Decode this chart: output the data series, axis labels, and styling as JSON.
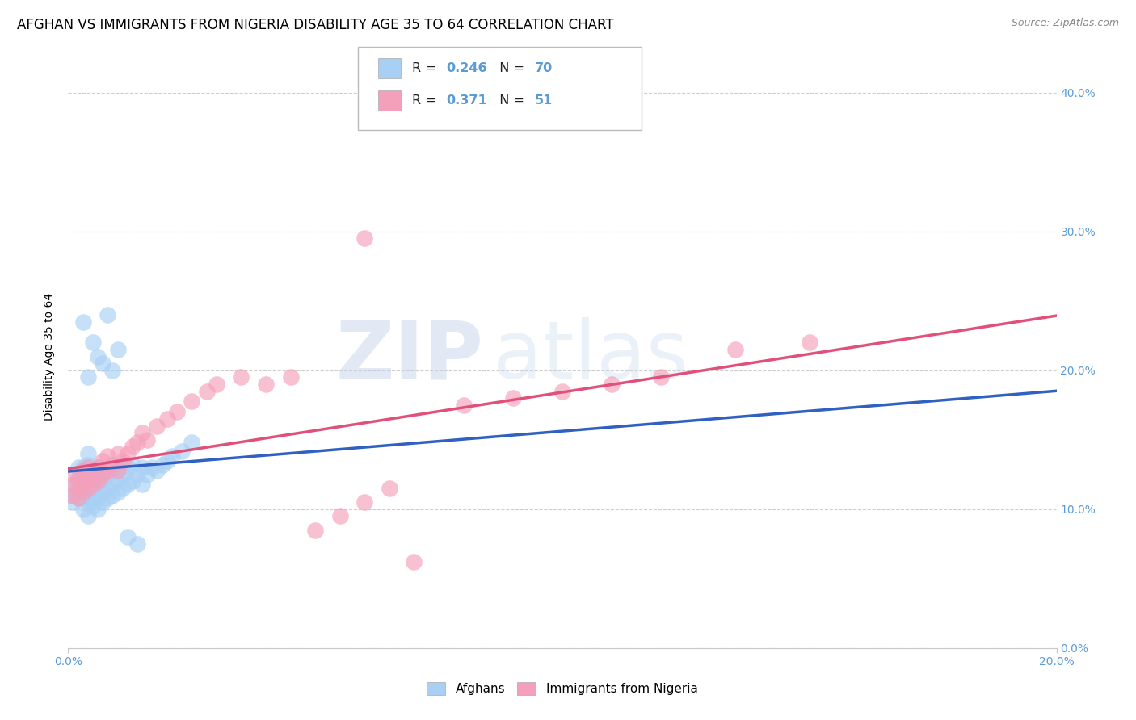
{
  "title": "AFGHAN VS IMMIGRANTS FROM NIGERIA DISABILITY AGE 35 TO 64 CORRELATION CHART",
  "source": "Source: ZipAtlas.com",
  "ylabel": "Disability Age 35 to 64",
  "xlim": [
    0.0,
    0.2
  ],
  "ylim": [
    0.0,
    0.42
  ],
  "xticks": [
    0.0,
    0.2
  ],
  "xtick_labels": [
    "0.0%",
    "20.0%"
  ],
  "yticks": [
    0.0,
    0.1,
    0.2,
    0.3,
    0.4
  ],
  "ytick_labels": [
    "0.0%",
    "10.0%",
    "20.0%",
    "30.0%",
    "40.0%"
  ],
  "afghans_R": 0.246,
  "afghans_N": 70,
  "nigeria_R": 0.371,
  "nigeria_N": 51,
  "afghan_color": "#A8D0F5",
  "nigeria_color": "#F5A0BB",
  "trendline_afghan_color": "#3060C0",
  "trendline_nigeria_color": "#E0507A",
  "watermark_zip": "ZIP",
  "watermark_atlas": "atlas",
  "background_color": "#FFFFFF",
  "grid_color": "#C8C8C8",
  "tick_color": "#5B9BD5",
  "title_fontsize": 12,
  "axis_label_fontsize": 10,
  "tick_fontsize": 10,
  "legend_R_color": "#5B9BD5",
  "legend_N_color": "#5B9BD5",
  "afghans_x": [
    0.001,
    0.001,
    0.001,
    0.002,
    0.002,
    0.002,
    0.002,
    0.002,
    0.003,
    0.003,
    0.003,
    0.003,
    0.003,
    0.003,
    0.004,
    0.004,
    0.004,
    0.004,
    0.004,
    0.004,
    0.004,
    0.005,
    0.005,
    0.005,
    0.005,
    0.005,
    0.006,
    0.006,
    0.006,
    0.006,
    0.007,
    0.007,
    0.007,
    0.007,
    0.008,
    0.008,
    0.008,
    0.009,
    0.009,
    0.009,
    0.01,
    0.01,
    0.01,
    0.011,
    0.011,
    0.012,
    0.012,
    0.013,
    0.013,
    0.014,
    0.015,
    0.015,
    0.016,
    0.017,
    0.018,
    0.019,
    0.02,
    0.021,
    0.023,
    0.025,
    0.003,
    0.004,
    0.005,
    0.006,
    0.007,
    0.008,
    0.009,
    0.01,
    0.012,
    0.014
  ],
  "afghans_y": [
    0.105,
    0.11,
    0.115,
    0.112,
    0.108,
    0.118,
    0.122,
    0.13,
    0.1,
    0.108,
    0.112,
    0.118,
    0.125,
    0.13,
    0.095,
    0.105,
    0.112,
    0.118,
    0.125,
    0.132,
    0.14,
    0.102,
    0.108,
    0.115,
    0.122,
    0.128,
    0.1,
    0.108,
    0.118,
    0.13,
    0.105,
    0.112,
    0.12,
    0.128,
    0.108,
    0.115,
    0.125,
    0.11,
    0.118,
    0.128,
    0.112,
    0.12,
    0.13,
    0.115,
    0.125,
    0.118,
    0.13,
    0.12,
    0.132,
    0.125,
    0.118,
    0.13,
    0.125,
    0.13,
    0.128,
    0.132,
    0.135,
    0.138,
    0.142,
    0.148,
    0.235,
    0.195,
    0.22,
    0.21,
    0.205,
    0.24,
    0.2,
    0.215,
    0.08,
    0.075
  ],
  "nigeria_x": [
    0.001,
    0.001,
    0.001,
    0.002,
    0.002,
    0.002,
    0.003,
    0.003,
    0.003,
    0.004,
    0.004,
    0.004,
    0.005,
    0.005,
    0.006,
    0.006,
    0.007,
    0.007,
    0.008,
    0.008,
    0.009,
    0.01,
    0.01,
    0.011,
    0.012,
    0.013,
    0.014,
    0.015,
    0.016,
    0.018,
    0.02,
    0.022,
    0.025,
    0.028,
    0.03,
    0.035,
    0.04,
    0.045,
    0.05,
    0.055,
    0.06,
    0.065,
    0.07,
    0.08,
    0.09,
    0.1,
    0.11,
    0.12,
    0.135,
    0.15,
    0.06
  ],
  "nigeria_y": [
    0.11,
    0.118,
    0.125,
    0.108,
    0.115,
    0.122,
    0.112,
    0.12,
    0.128,
    0.115,
    0.122,
    0.13,
    0.118,
    0.128,
    0.12,
    0.13,
    0.125,
    0.135,
    0.128,
    0.138,
    0.132,
    0.128,
    0.14,
    0.135,
    0.14,
    0.145,
    0.148,
    0.155,
    0.15,
    0.16,
    0.165,
    0.17,
    0.178,
    0.185,
    0.19,
    0.195,
    0.19,
    0.195,
    0.085,
    0.095,
    0.105,
    0.115,
    0.062,
    0.175,
    0.18,
    0.185,
    0.19,
    0.195,
    0.215,
    0.22,
    0.295
  ]
}
